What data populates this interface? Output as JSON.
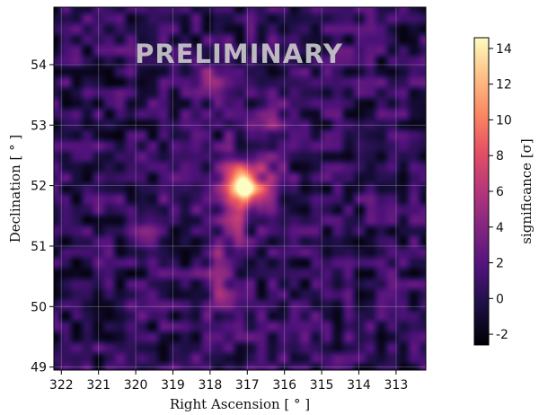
{
  "watermark": "PRELIMINARY",
  "chart_data": {
    "type": "heatmap",
    "title": "",
    "xlabel": "Right Ascension [ ° ]",
    "ylabel": "Declination [ ° ]",
    "colorbar_label": "significance [σ]",
    "colormap": "magma",
    "xlim": [
      322.2,
      312.2
    ],
    "ylim": [
      48.95,
      54.95
    ],
    "x_ticks": [
      322,
      321,
      320,
      319,
      318,
      317,
      316,
      315,
      314,
      313
    ],
    "y_ticks": [
      49,
      50,
      51,
      52,
      53,
      54
    ],
    "colorbar_ticks": [
      -2,
      0,
      2,
      4,
      6,
      8,
      10,
      12,
      14
    ],
    "color_range": [
      -2.6,
      14.6
    ],
    "grid": true,
    "hotspots": [
      {
        "ra": 317.1,
        "dec": 51.95,
        "significance": 14.5
      },
      {
        "ra": 316.6,
        "dec": 52.0,
        "significance": 5.5
      },
      {
        "ra": 317.5,
        "dec": 52.2,
        "significance": 4.5
      },
      {
        "ra": 317.4,
        "dec": 51.4,
        "significance": 4.0
      },
      {
        "ra": 317.8,
        "dec": 50.6,
        "significance": 3.2
      },
      {
        "ra": 319.7,
        "dec": 51.3,
        "significance": 2.8
      },
      {
        "ra": 318.0,
        "dec": 53.75,
        "significance": 2.6
      },
      {
        "ra": 316.3,
        "dec": 52.95,
        "significance": 2.4
      },
      {
        "ra": 317.6,
        "dec": 50.15,
        "significance": 2.2
      }
    ]
  }
}
